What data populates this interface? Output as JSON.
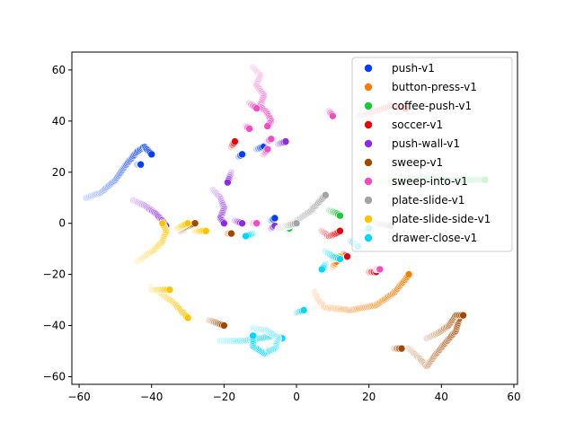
{
  "chart_data": {
    "type": "scatter",
    "title": "",
    "xlabel": "",
    "ylabel": "",
    "xlim": [
      -62,
      61
    ],
    "ylim": [
      -63,
      67
    ],
    "xticks": [
      -60,
      -40,
      -20,
      0,
      20,
      40,
      60
    ],
    "yticks": [
      -60,
      -40,
      -20,
      0,
      20,
      40,
      60
    ],
    "grid": false,
    "legend_position": "upper right",
    "series": [
      {
        "name": "push-v1",
        "color": "#023eff",
        "segments": [
          [
            [
              -58,
              10
            ],
            [
              -54,
              12
            ],
            [
              -50,
              17
            ],
            [
              -47,
              23
            ],
            [
              -44,
              28
            ],
            [
              -42,
              30
            ],
            [
              -40,
              27
            ]
          ],
          [
            [
              -44,
              23
            ],
            [
              -43,
              23
            ]
          ],
          [
            [
              -16,
              26
            ],
            [
              -15,
              27
            ]
          ],
          [
            [
              -7,
              1
            ],
            [
              -6,
              2
            ]
          ],
          [
            [
              -11,
              29
            ],
            [
              -9,
              30
            ]
          ]
        ]
      },
      {
        "name": "button-press-v1",
        "color": "#ff7c00",
        "segments": [
          [
            [
              5,
              -27
            ],
            [
              6,
              -30
            ],
            [
              8,
              -33
            ],
            [
              15,
              -34
            ],
            [
              22,
              -32
            ],
            [
              27,
              -27
            ],
            [
              30,
              -22
            ],
            [
              31,
              -20
            ]
          ],
          [
            [
              10,
              -17
            ],
            [
              11,
              -15
            ]
          ]
        ]
      },
      {
        "name": "coffee-push-v1",
        "color": "#1ac938",
        "segments": [
          [
            [
              23,
              16
            ],
            [
              33,
              18
            ],
            [
              43,
              17
            ],
            [
              52,
              17
            ]
          ],
          [
            [
              9,
              5
            ],
            [
              11,
              4
            ],
            [
              12,
              3
            ]
          ],
          [
            [
              -3,
              -2
            ],
            [
              -2,
              -2
            ]
          ]
        ]
      },
      {
        "name": "soccer-v1",
        "color": "#e8000b",
        "segments": [
          [
            [
              7,
              -3
            ],
            [
              9,
              -5
            ],
            [
              11,
              -4
            ],
            [
              12,
              -3
            ]
          ],
          [
            [
              13,
              -12
            ],
            [
              14,
              -13
            ]
          ],
          [
            [
              20,
              -19
            ],
            [
              22,
              -19
            ]
          ],
          [
            [
              17,
              42
            ],
            [
              22,
              44
            ],
            [
              26,
              46
            ],
            [
              30,
              45
            ]
          ],
          [
            [
              -18,
              30
            ],
            [
              -17,
              32
            ]
          ]
        ]
      },
      {
        "name": "push-wall-v1",
        "color": "#8b2be2",
        "segments": [
          [
            [
              -45,
              9
            ],
            [
              -42,
              7
            ],
            [
              -39,
              4
            ],
            [
              -37,
              1
            ],
            [
              -36,
              -1
            ]
          ],
          [
            [
              -23,
              13
            ],
            [
              -21,
              10
            ],
            [
              -20,
              6
            ],
            [
              -21,
              2
            ],
            [
              -20,
              0
            ]
          ],
          [
            [
              -18,
              20
            ],
            [
              -19,
              16
            ]
          ],
          [
            [
              -5,
              31
            ],
            [
              -3,
              32
            ]
          ],
          [
            [
              -7,
              -2
            ],
            [
              -6,
              -1
            ]
          ],
          [
            [
              -17,
              1
            ],
            [
              -15,
              0
            ]
          ]
        ]
      },
      {
        "name": "sweep-v1",
        "color": "#9f4800",
        "segments": [
          [
            [
              31,
              -49
            ],
            [
              34,
              -53
            ],
            [
              36,
              -56
            ],
            [
              38,
              -52
            ],
            [
              41,
              -47
            ],
            [
              44,
              -42
            ],
            [
              45,
              -37
            ]
          ],
          [
            [
              36,
              -45
            ],
            [
              39,
              -43
            ],
            [
              42,
              -40
            ],
            [
              44,
              -36
            ],
            [
              46,
              -36
            ]
          ],
          [
            [
              27,
              -49
            ],
            [
              29,
              -49
            ]
          ],
          [
            [
              -24,
              -38
            ],
            [
              -22,
              -39
            ],
            [
              -20,
              -40
            ]
          ],
          [
            [
              -32,
              -3
            ],
            [
              -30,
              -1
            ],
            [
              -28,
              0
            ]
          ],
          [
            [
              -19,
              -4
            ],
            [
              -18,
              -4
            ]
          ]
        ]
      },
      {
        "name": "sweep-into-v1",
        "color": "#f14cc1",
        "segments": [
          [
            [
              -12,
              61
            ],
            [
              -10,
              58
            ],
            [
              -11,
              54
            ],
            [
              -9,
              50
            ],
            [
              -10,
              46
            ],
            [
              -8,
              43
            ],
            [
              -7,
              40
            ],
            [
              -8,
              38
            ]
          ],
          [
            [
              -13,
              47
            ],
            [
              -11,
              45
            ]
          ],
          [
            [
              9,
              44
            ],
            [
              10,
              42
            ]
          ],
          [
            [
              22,
              -18
            ],
            [
              23,
              -18
            ]
          ],
          [
            [
              -14,
              38
            ],
            [
              -13,
              37
            ]
          ],
          [
            [
              -9,
              27
            ],
            [
              -8,
              29
            ]
          ],
          [
            [
              -12,
              0
            ],
            [
              -11,
              0
            ]
          ],
          [
            [
              -8,
              32
            ],
            [
              -7,
              33
            ]
          ]
        ]
      },
      {
        "name": "plate-slide-v1",
        "color": "#a3a3a3",
        "segments": [
          [
            [
              -5,
              -2
            ],
            [
              -2,
              -1
            ],
            [
              1,
              2
            ],
            [
              4,
              5
            ],
            [
              6,
              8
            ],
            [
              8,
              11
            ]
          ],
          [
            [
              -3,
              -1
            ],
            [
              0,
              0
            ]
          ],
          [
            [
              20,
              2
            ],
            [
              22,
              0
            ],
            [
              26,
              -1
            ]
          ]
        ]
      },
      {
        "name": "plate-slide-side-v1",
        "color": "#ffc400",
        "segments": [
          [
            [
              -44,
              -15
            ],
            [
              -42,
              -13
            ],
            [
              -39,
              -10
            ],
            [
              -37,
              -7
            ],
            [
              -36,
              -3
            ],
            [
              -37,
              0
            ]
          ],
          [
            [
              -40,
              -25
            ],
            [
              -37,
              -28
            ],
            [
              -34,
              -31
            ],
            [
              -32,
              -34
            ],
            [
              -30,
              -37
            ]
          ],
          [
            [
              -40,
              -26
            ],
            [
              -35,
              -26
            ]
          ],
          [
            [
              -28,
              -3
            ],
            [
              -25,
              -3
            ]
          ],
          [
            [
              -33,
              -2
            ],
            [
              -30,
              0
            ]
          ],
          [
            [
              10,
              -14
            ],
            [
              12,
              -13
            ]
          ]
        ]
      },
      {
        "name": "drawer-close-v1",
        "color": "#00d7ff",
        "segments": [
          [
            [
              -21,
              -46
            ],
            [
              -15,
              -46
            ],
            [
              -10,
              -45
            ],
            [
              -6,
              -44
            ],
            [
              -4,
              -45
            ]
          ],
          [
            [
              -12,
              -41
            ],
            [
              -8,
              -42
            ],
            [
              -5,
              -45
            ],
            [
              -6,
              -49
            ],
            [
              -9,
              -51
            ],
            [
              -12,
              -48
            ],
            [
              -12,
              -44
            ]
          ],
          [
            [
              8,
              -11
            ],
            [
              10,
              -13
            ],
            [
              12,
              -14
            ]
          ],
          [
            [
              8,
              -16
            ],
            [
              7,
              -18
            ]
          ],
          [
            [
              0,
              -35
            ],
            [
              2,
              -34
            ]
          ],
          [
            [
              -12,
              -4
            ],
            [
              -14,
              -5
            ]
          ],
          [
            [
              15,
              -7
            ],
            [
              17,
              -9
            ]
          ],
          [
            [
              19,
              -3
            ],
            [
              20,
              -2
            ]
          ]
        ]
      }
    ]
  }
}
